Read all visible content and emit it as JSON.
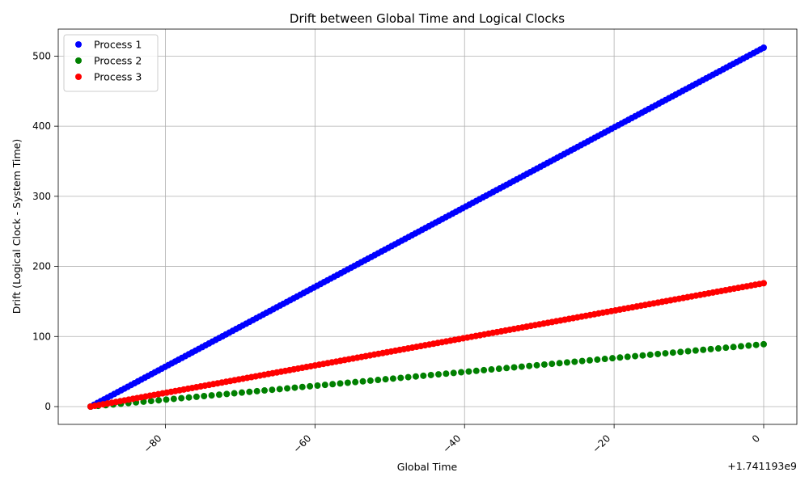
{
  "chart_data": {
    "type": "scatter",
    "title": "Drift between Global Time and Logical Clocks",
    "xlabel": "Global Time",
    "ylabel": "Drift (Logical Clock - System Time)",
    "x_offset_label": "+1.741193e9",
    "xlim": [
      -90,
      0
    ],
    "ylim": [
      0,
      512
    ],
    "xticks": [
      -80,
      -60,
      -40,
      -20,
      0
    ],
    "xtick_labels": [
      "−80",
      "−60",
      "−40",
      "−20",
      "0"
    ],
    "yticks": [
      0,
      100,
      200,
      300,
      400,
      500
    ],
    "ytick_labels": [
      "0",
      "100",
      "200",
      "300",
      "400",
      "500"
    ],
    "grid": true,
    "legend_position": "top-left",
    "series": [
      {
        "name": "Process 1",
        "color": "#0000ff",
        "x_start": -90,
        "x_end": 0,
        "y_start": 0,
        "y_end": 512,
        "count": 200
      },
      {
        "name": "Process 2",
        "color": "#008000",
        "x_start": -90,
        "x_end": 0,
        "y_start": 0,
        "y_end": 89,
        "count": 90
      },
      {
        "name": "Process 3",
        "color": "#ff0000",
        "x_start": -90,
        "x_end": 0,
        "y_start": 0,
        "y_end": 176,
        "count": 160
      }
    ]
  }
}
